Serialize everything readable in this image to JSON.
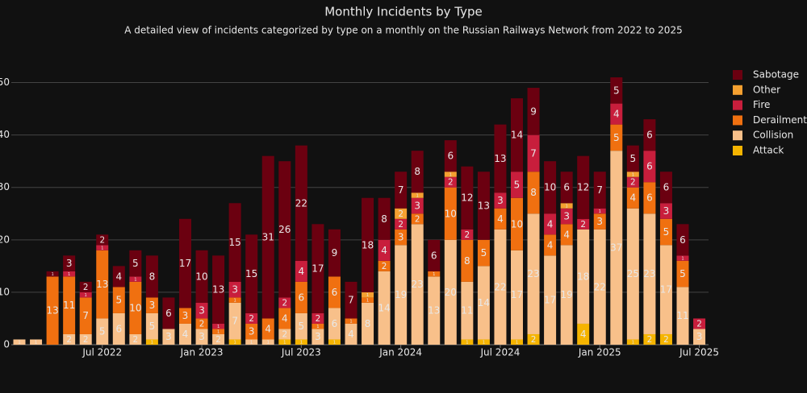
{
  "chart_data": {
    "type": "stacked_bar",
    "title": "Monthly Incidents by Type",
    "subtitle": "A detailed view of incidents categorized by type on a monthly on the Russian Railways Network from 2022 to 2025",
    "x": [
      "2022-02",
      "2022-03",
      "2022-04",
      "2022-05",
      "2022-06",
      "2022-07",
      "2022-08",
      "2022-09",
      "2022-10",
      "2022-11",
      "2022-12",
      "2023-01",
      "2023-02",
      "2023-03",
      "2023-04",
      "2023-05",
      "2023-06",
      "2023-07",
      "2023-08",
      "2023-09",
      "2023-10",
      "2023-11",
      "2023-12",
      "2024-01",
      "2024-02",
      "2024-03",
      "2024-04",
      "2024-05",
      "2024-06",
      "2024-07",
      "2024-08",
      "2024-09",
      "2024-10",
      "2024-11",
      "2024-12",
      "2025-01",
      "2025-02",
      "2025-03",
      "2025-04",
      "2025-05",
      "2025-06",
      "2025-07"
    ],
    "series": [
      {
        "name": "Attack",
        "color": "#f5b400",
        "values": [
          0,
          0,
          0,
          0,
          0,
          0,
          0,
          0,
          1,
          0,
          0,
          0,
          0,
          1,
          0,
          0,
          1,
          1,
          0,
          1,
          0,
          0,
          0,
          0,
          0,
          0,
          0,
          1,
          1,
          0,
          1,
          2,
          0,
          0,
          4,
          0,
          0,
          1,
          2,
          2,
          0,
          0
        ]
      },
      {
        "name": "Collision",
        "color": "#f8c08a",
        "values": [
          1,
          1,
          0,
          2,
          2,
          5,
          6,
          2,
          5,
          3,
          4,
          3,
          2,
          7,
          1,
          1,
          2,
          5,
          3,
          6,
          4,
          8,
          14,
          19,
          23,
          13,
          20,
          11,
          14,
          22,
          17,
          23,
          17,
          19,
          18,
          22,
          37,
          25,
          23,
          17,
          11,
          3
        ]
      },
      {
        "name": "Derailment",
        "color": "#f07010",
        "values": [
          0,
          0,
          13,
          11,
          7,
          13,
          5,
          10,
          3,
          0,
          3,
          2,
          1,
          1,
          3,
          4,
          4,
          6,
          1,
          6,
          1,
          1,
          2,
          3,
          2,
          1,
          10,
          8,
          5,
          4,
          10,
          8,
          4,
          4,
          0,
          3,
          5,
          4,
          6,
          5,
          5,
          0
        ]
      },
      {
        "name": "Fire",
        "color": "#c81e3c",
        "values": [
          0,
          0,
          0,
          1,
          1,
          1,
          0,
          1,
          0,
          0,
          0,
          3,
          1,
          3,
          2,
          0,
          2,
          4,
          2,
          0,
          0,
          0,
          4,
          2,
          3,
          0,
          2,
          2,
          0,
          3,
          5,
          7,
          4,
          3,
          2,
          1,
          4,
          2,
          6,
          3,
          1,
          2
        ]
      },
      {
        "name": "Other",
        "color": "#f5a030",
        "values": [
          0,
          0,
          0,
          0,
          0,
          0,
          0,
          0,
          0,
          0,
          0,
          0,
          0,
          0,
          0,
          0,
          0,
          0,
          0,
          0,
          0,
          1,
          0,
          2,
          1,
          0,
          1,
          0,
          0,
          0,
          0,
          0,
          0,
          1,
          0,
          0,
          0,
          1,
          0,
          0,
          0,
          0
        ]
      },
      {
        "name": "Sabotage",
        "color": "#6b0010",
        "values": [
          0,
          0,
          1,
          3,
          2,
          2,
          4,
          5,
          8,
          6,
          17,
          10,
          13,
          15,
          15,
          31,
          26,
          22,
          17,
          9,
          7,
          18,
          8,
          7,
          8,
          6,
          6,
          12,
          13,
          13,
          14,
          9,
          10,
          6,
          12,
          7,
          5,
          5,
          6,
          6,
          6,
          0
        ]
      }
    ],
    "ylim": [
      0,
      55
    ],
    "yticks": [
      0,
      10,
      20,
      30,
      40,
      50
    ],
    "xticks": [
      {
        "value": "2022-07",
        "label": "Jul 2022"
      },
      {
        "value": "2023-01",
        "label": "Jan 2023"
      },
      {
        "value": "2023-07",
        "label": "Jul 2023"
      },
      {
        "value": "2024-01",
        "label": "Jan 2024"
      },
      {
        "value": "2024-07",
        "label": "Jul 2024"
      },
      {
        "value": "2025-01",
        "label": "Jan 2025"
      },
      {
        "value": "2025-07",
        "label": "Jul 2025"
      }
    ],
    "grid": true,
    "legend": "right"
  }
}
